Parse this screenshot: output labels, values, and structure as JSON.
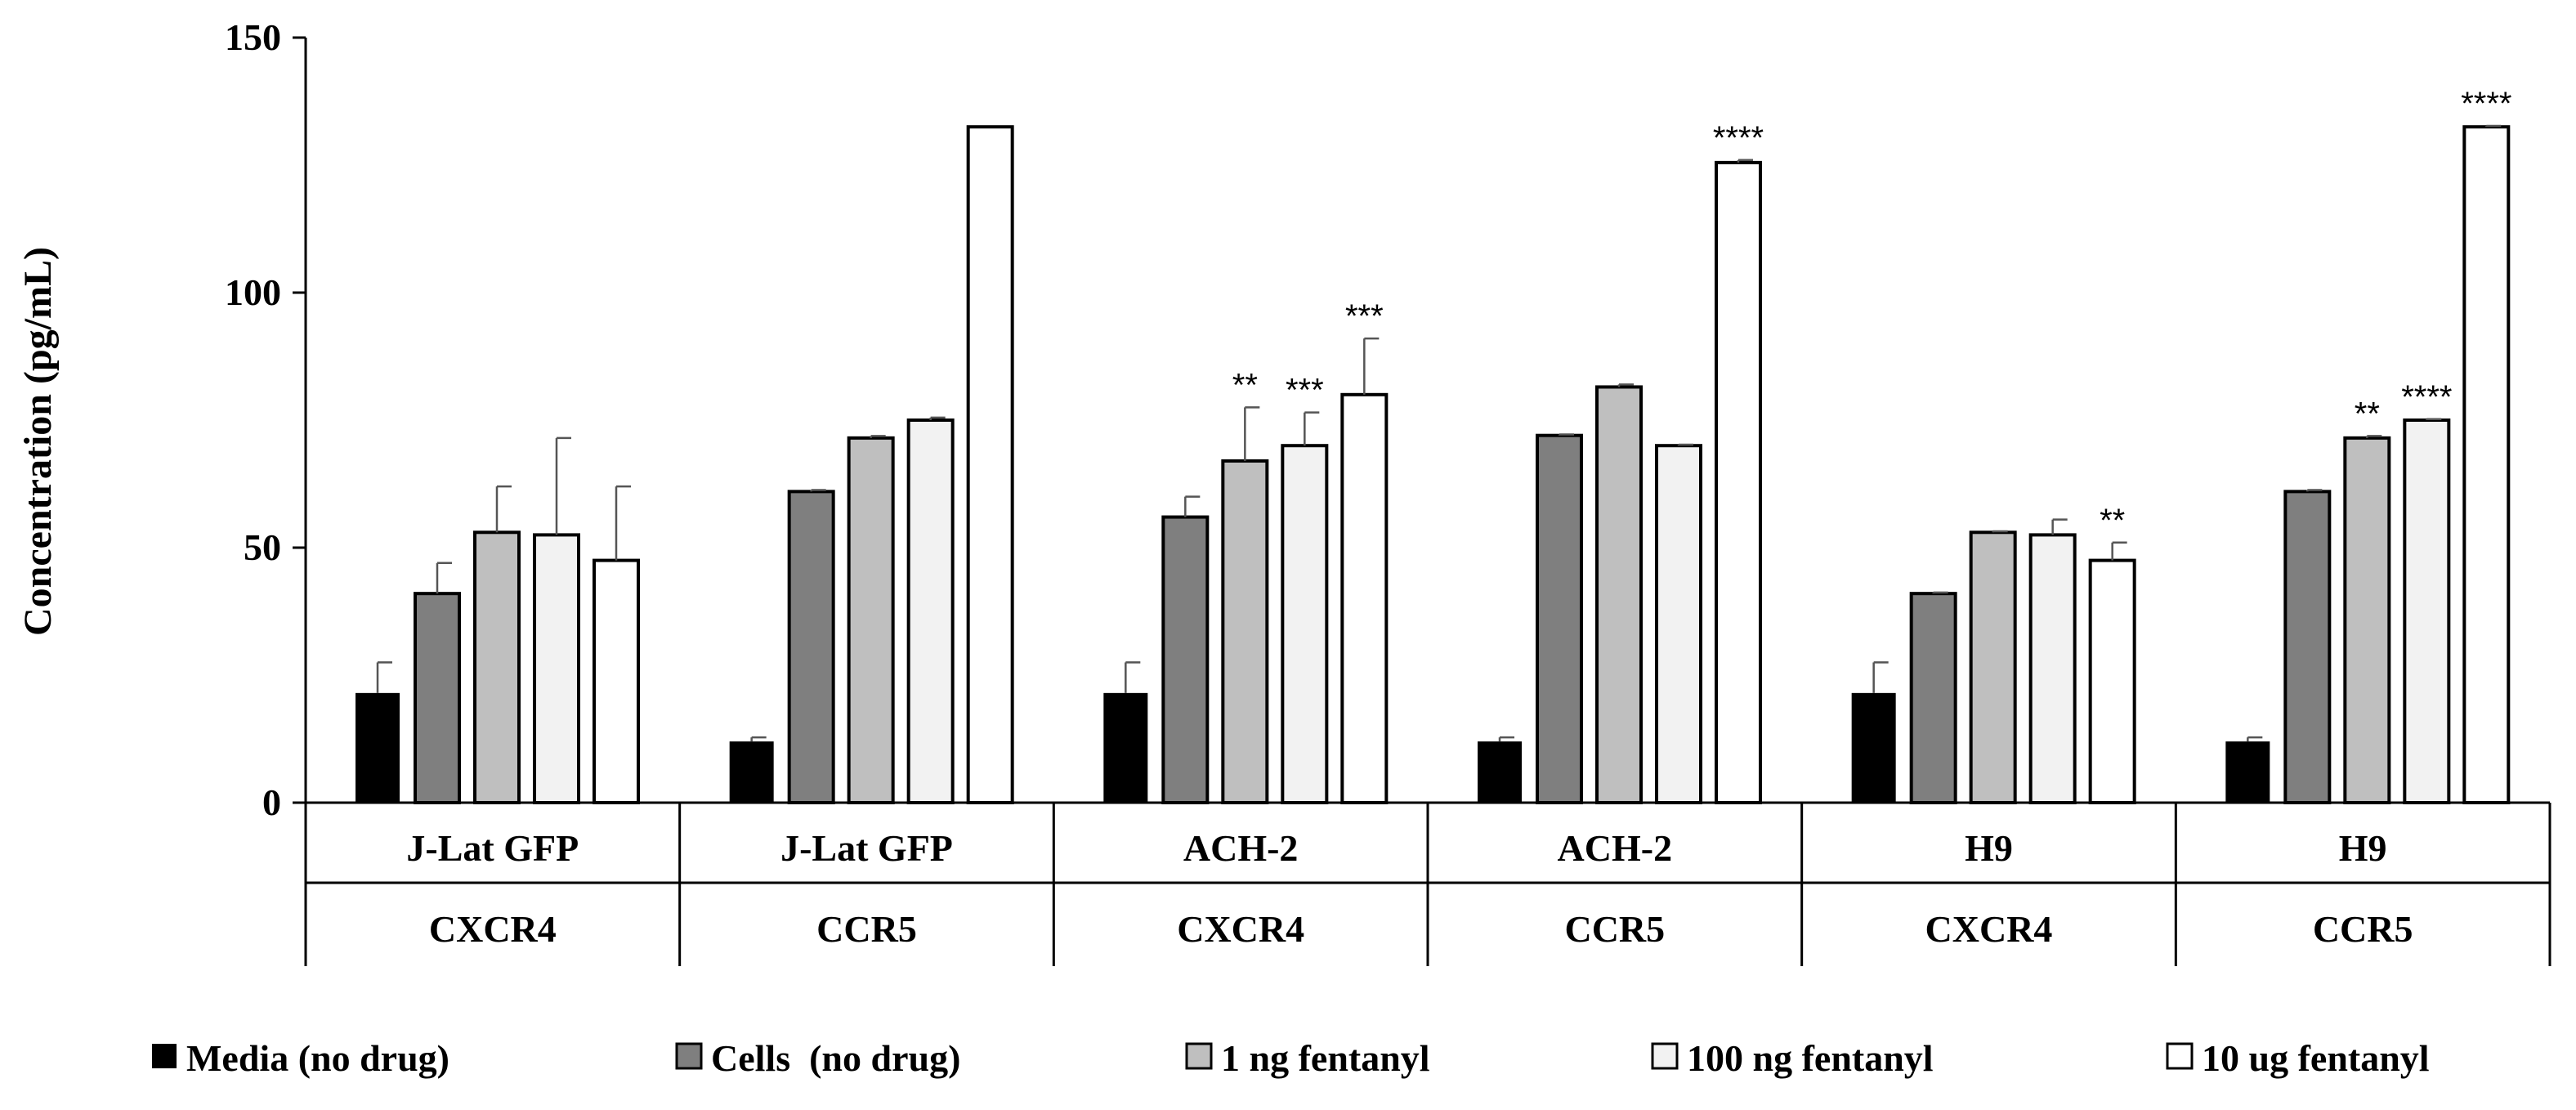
{
  "chart_data": {
    "type": "bar",
    "title": "",
    "xlabel": "",
    "ylabel": "Concentration (pg/mL)",
    "ylim": [
      0,
      150
    ],
    "yticks": [
      0,
      50,
      100,
      150
    ],
    "grid": false,
    "legend_position": "bottom",
    "groups": [
      {
        "line1": "J-Lat GFP",
        "line2": "CXCR4"
      },
      {
        "line1": "J-Lat GFP",
        "line2": "CCR5"
      },
      {
        "line1": "ACH-2",
        "line2": "CXCR4"
      },
      {
        "line1": "ACH-2",
        "line2": "CCR5"
      },
      {
        "line1": "H9",
        "line2": "CXCR4"
      },
      {
        "line1": "H9",
        "line2": "CCR5"
      }
    ],
    "series": [
      {
        "name": "Media (no drug)",
        "color": "#000000",
        "values": [
          21.5,
          12,
          21.5,
          12,
          21.5,
          12
        ],
        "errors": [
          6,
          0.8,
          6,
          0.8,
          6,
          0.8
        ],
        "sig": [
          "",
          "",
          "",
          "",
          "",
          ""
        ]
      },
      {
        "name": "Cells  (no drug)",
        "color": "#7f7f7f",
        "values": [
          41,
          61,
          56,
          72,
          41,
          61
        ],
        "errors": [
          6,
          0.3,
          4,
          0.2,
          0.2,
          0.3
        ],
        "sig": [
          "",
          "",
          "",
          "",
          "",
          ""
        ]
      },
      {
        "name": "1 ng fentanyl",
        "color": "#bfbfbf",
        "values": [
          53,
          71.5,
          67,
          81.5,
          53,
          71.5
        ],
        "errors": [
          9,
          0.4,
          10.5,
          0.5,
          0.2,
          0.4
        ],
        "sig": [
          "",
          "",
          "**",
          "",
          "",
          "**"
        ]
      },
      {
        "name": "100 ng fentanyl",
        "color": "#f2f2f2",
        "values": [
          52.5,
          75,
          70,
          70,
          52.5,
          75
        ],
        "errors": [
          19,
          0.5,
          6.5,
          0.2,
          3,
          0.2
        ],
        "sig": [
          "",
          "",
          "***",
          "",
          "",
          "****"
        ]
      },
      {
        "name": "10 ug fentanyl",
        "color": "#ffffff",
        "values": [
          47.5,
          132.5,
          80,
          125.5,
          47.5,
          132.5
        ],
        "errors": [
          14.5,
          0,
          11,
          0.5,
          3.5,
          0.2
        ],
        "sig": [
          "",
          "",
          "***",
          "****",
          "**",
          "****"
        ]
      }
    ]
  }
}
